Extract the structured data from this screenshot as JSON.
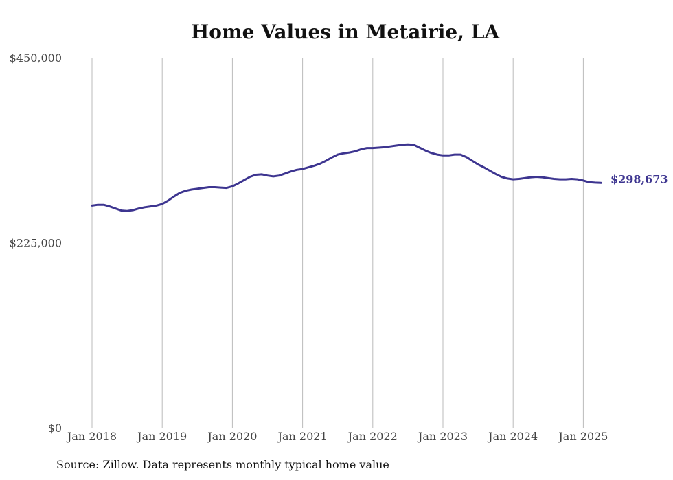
{
  "chart_data": {
    "type": "line",
    "title": "Home Values in Metairie, LA",
    "xlabel": "",
    "ylabel": "",
    "ylim": [
      0,
      450000
    ],
    "y_ticks": [
      {
        "value": 0,
        "label": "$0"
      },
      {
        "value": 225000,
        "label": "$225,000"
      },
      {
        "value": 450000,
        "label": "$450,000"
      }
    ],
    "x_ticks": [
      "Jan 2018",
      "Jan 2019",
      "Jan 2020",
      "Jan 2021",
      "Jan 2022",
      "Jan 2023",
      "Jan 2024",
      "Jan 2025"
    ],
    "grid": "vertical",
    "colors": {
      "line": "#3d3590",
      "grid": "#bbbbbb"
    },
    "series": [
      {
        "x": [
          "2018-01",
          "2018-02",
          "2018-03",
          "2018-04",
          "2018-05",
          "2018-06",
          "2018-07",
          "2018-08",
          "2018-09",
          "2018-10",
          "2018-11",
          "2018-12",
          "2019-01",
          "2019-02",
          "2019-03",
          "2019-04",
          "2019-05",
          "2019-06",
          "2019-07",
          "2019-08",
          "2019-09",
          "2019-10",
          "2019-11",
          "2019-12",
          "2020-01",
          "2020-02",
          "2020-03",
          "2020-04",
          "2020-05",
          "2020-06",
          "2020-07",
          "2020-08",
          "2020-09",
          "2020-10",
          "2020-11",
          "2020-12",
          "2021-01",
          "2021-02",
          "2021-03",
          "2021-04",
          "2021-05",
          "2021-06",
          "2021-07",
          "2021-08",
          "2021-09",
          "2021-10",
          "2021-11",
          "2021-12",
          "2022-01",
          "2022-02",
          "2022-03",
          "2022-04",
          "2022-05",
          "2022-06",
          "2022-07",
          "2022-08",
          "2022-09",
          "2022-10",
          "2022-11",
          "2022-12",
          "2023-01",
          "2023-02",
          "2023-03",
          "2023-04",
          "2023-05",
          "2023-06",
          "2023-07",
          "2023-08",
          "2023-09",
          "2023-10",
          "2023-11",
          "2023-12",
          "2024-01",
          "2024-02",
          "2024-03",
          "2024-04",
          "2024-05",
          "2024-06",
          "2024-07",
          "2024-08",
          "2024-09",
          "2024-10",
          "2024-11",
          "2024-12",
          "2025-01",
          "2025-02",
          "2025-03",
          "2025-04"
        ],
        "values": [
          271000,
          272000,
          272000,
          270000,
          267500,
          265000,
          264500,
          265500,
          267500,
          269000,
          270000,
          271000,
          273000,
          277000,
          282000,
          286500,
          289000,
          290500,
          291500,
          292500,
          293500,
          293500,
          293000,
          292500,
          294500,
          298000,
          302000,
          306000,
          308500,
          309000,
          307500,
          306500,
          307500,
          310000,
          312500,
          314500,
          315500,
          317500,
          319500,
          322000,
          325500,
          329500,
          333000,
          334500,
          335500,
          337000,
          339500,
          341000,
          341000,
          341500,
          342000,
          343000,
          344000,
          345000,
          345500,
          345000,
          341500,
          338000,
          335000,
          333000,
          332000,
          332000,
          333000,
          333000,
          330000,
          325500,
          321000,
          317500,
          313500,
          309500,
          306000,
          304000,
          303000,
          303500,
          304500,
          305500,
          306000,
          305500,
          304500,
          303500,
          303000,
          303000,
          303500,
          303000,
          301500,
          299500,
          299000,
          298673
        ],
        "end_label": "$298,673"
      }
    ]
  },
  "source_note": "Source: Zillow. Data represents monthly typical home value"
}
